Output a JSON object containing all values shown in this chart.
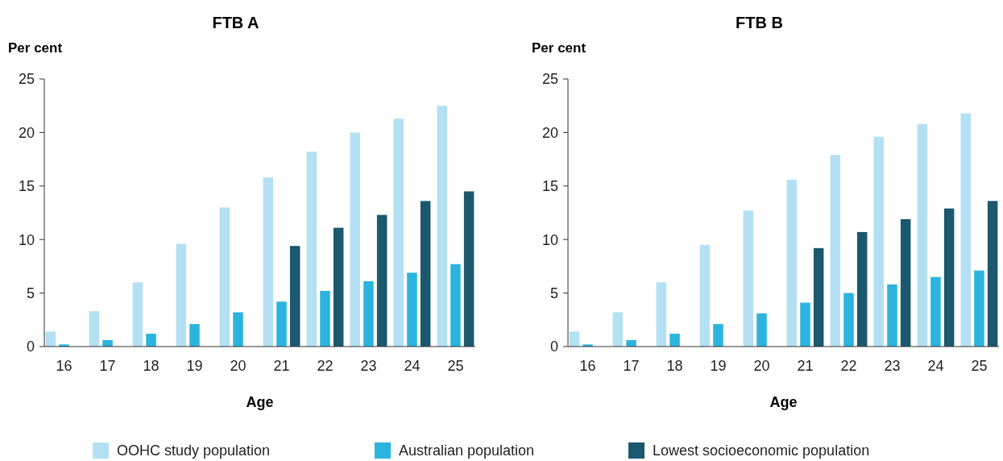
{
  "chart_data": [
    {
      "type": "bar",
      "title": "FTB A",
      "ylabel": "Per cent",
      "xlabel": "Age",
      "categories": [
        "16",
        "17",
        "18",
        "19",
        "20",
        "21",
        "22",
        "23",
        "24",
        "25"
      ],
      "ylim": [
        0,
        25
      ],
      "yticks": [
        0,
        5,
        10,
        15,
        20,
        25
      ],
      "legend": "bottom",
      "series": [
        {
          "name": "OOHC study population",
          "color": "#b3e1f3",
          "values": [
            1.4,
            3.3,
            6.0,
            9.6,
            13.0,
            15.8,
            18.2,
            20.0,
            21.3,
            22.5
          ]
        },
        {
          "name": "Australian population",
          "color": "#2bb4de",
          "values": [
            0.2,
            0.6,
            1.2,
            2.1,
            3.2,
            4.2,
            5.2,
            6.1,
            6.9,
            7.7
          ]
        },
        {
          "name": "Lowest socioeconomic population",
          "color": "#1c586e",
          "values": [
            null,
            null,
            null,
            null,
            null,
            9.4,
            11.1,
            12.3,
            13.6,
            14.5
          ]
        }
      ]
    },
    {
      "type": "bar",
      "title": "FTB B",
      "ylabel": "Per cent",
      "xlabel": "Age",
      "categories": [
        "16",
        "17",
        "18",
        "19",
        "20",
        "21",
        "22",
        "23",
        "24",
        "25"
      ],
      "ylim": [
        0,
        25
      ],
      "yticks": [
        0,
        5,
        10,
        15,
        20,
        25
      ],
      "series": [
        {
          "color": "#b3e1f3",
          "values": [
            1.4,
            3.2,
            6.0,
            9.5,
            12.7,
            15.6,
            17.9,
            19.6,
            20.8,
            21.8
          ]
        },
        {
          "color": "#2bb4de",
          "values": [
            0.2,
            0.6,
            1.2,
            2.1,
            3.1,
            4.1,
            5.0,
            5.8,
            6.5,
            7.1
          ]
        },
        {
          "color": "#1c586e",
          "values": [
            null,
            null,
            null,
            null,
            null,
            9.2,
            10.7,
            11.9,
            12.9,
            13.6
          ]
        }
      ]
    }
  ]
}
